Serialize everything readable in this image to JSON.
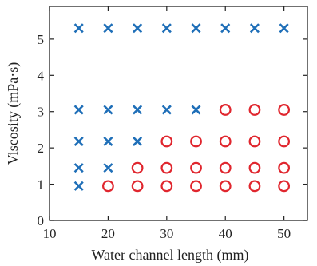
{
  "chart_data": {
    "type": "scatter",
    "title": "",
    "xlabel": "Water channel length (mm)",
    "ylabel": "Viscosity (mPa·s)",
    "xlim": [
      10,
      54
    ],
    "ylim": [
      0,
      5.9
    ],
    "x_ticks": [
      10,
      20,
      30,
      40,
      50
    ],
    "y_ticks": [
      0,
      1,
      2,
      3,
      4,
      5
    ],
    "grid": false,
    "legend": "none",
    "series": [
      {
        "marker": "x",
        "color": "#1f6fb8",
        "points": [
          [
            15,
            0.95
          ],
          [
            15,
            1.45
          ],
          [
            15,
            2.18
          ],
          [
            15,
            3.05
          ],
          [
            15,
            5.3
          ],
          [
            20,
            1.45
          ],
          [
            20,
            2.18
          ],
          [
            20,
            3.05
          ],
          [
            20,
            5.3
          ],
          [
            25,
            2.18
          ],
          [
            25,
            3.05
          ],
          [
            25,
            5.3
          ],
          [
            30,
            3.05
          ],
          [
            30,
            5.3
          ],
          [
            35,
            3.05
          ],
          [
            35,
            5.3
          ],
          [
            40,
            5.3
          ],
          [
            45,
            5.3
          ],
          [
            50,
            5.3
          ]
        ]
      },
      {
        "marker": "circle",
        "color": "#e0262e",
        "points": [
          [
            20,
            0.95
          ],
          [
            25,
            0.95
          ],
          [
            25,
            1.45
          ],
          [
            30,
            0.95
          ],
          [
            30,
            1.45
          ],
          [
            30,
            2.18
          ],
          [
            35,
            0.95
          ],
          [
            35,
            1.45
          ],
          [
            35,
            2.18
          ],
          [
            40,
            0.95
          ],
          [
            40,
            1.45
          ],
          [
            40,
            2.18
          ],
          [
            40,
            3.05
          ],
          [
            45,
            0.95
          ],
          [
            45,
            1.45
          ],
          [
            45,
            2.18
          ],
          [
            45,
            3.05
          ],
          [
            50,
            0.95
          ],
          [
            50,
            1.45
          ],
          [
            50,
            2.18
          ],
          [
            50,
            3.05
          ]
        ]
      }
    ]
  }
}
